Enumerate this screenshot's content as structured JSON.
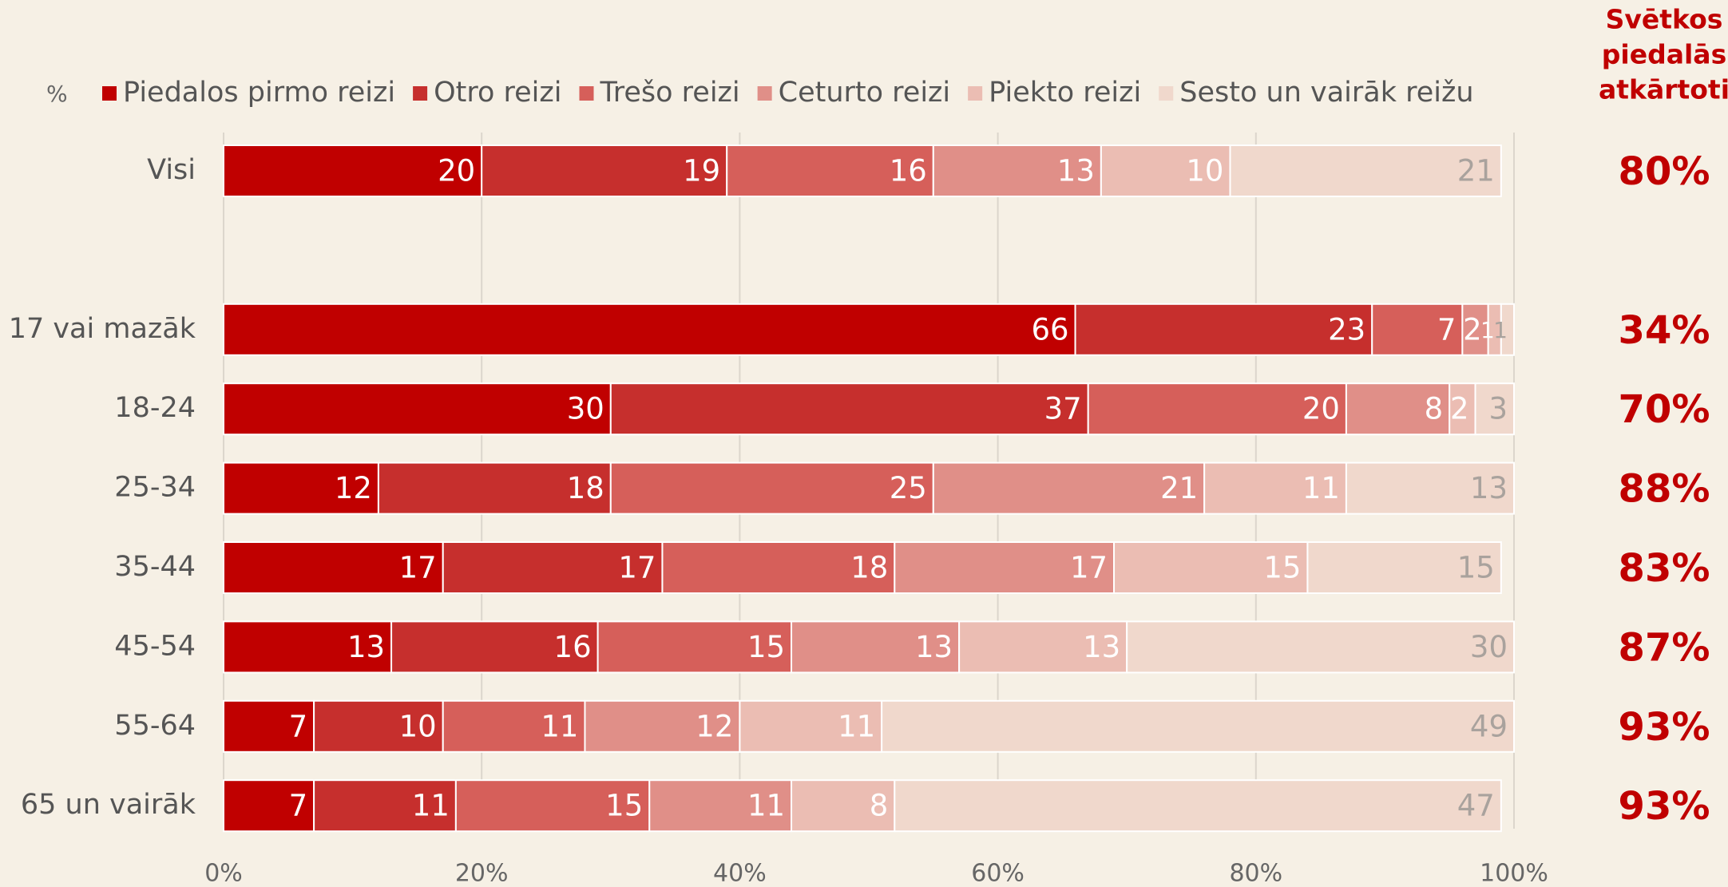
{
  "chart_data": {
    "type": "stacked_barh",
    "unit_label": "%",
    "categories": [
      "Visi",
      null,
      "17 vai mazāk",
      "18-24",
      "25-34",
      "35-44",
      "45-54",
      "55-64",
      "65 un vairāk"
    ],
    "series": [
      {
        "name": "Piedalos pirmo reizi",
        "color": "#c00000",
        "values": [
          20,
          null,
          66,
          30,
          12,
          17,
          13,
          7,
          7
        ]
      },
      {
        "name": "Otro reizi",
        "color": "#c62f2d",
        "values": [
          19,
          null,
          23,
          37,
          18,
          17,
          16,
          10,
          11
        ]
      },
      {
        "name": "Trešo reizi",
        "color": "#d65f5a",
        "values": [
          16,
          null,
          7,
          20,
          25,
          18,
          15,
          11,
          15
        ]
      },
      {
        "name": "Ceturto reizi",
        "color": "#e08f88",
        "values": [
          13,
          null,
          2,
          8,
          21,
          17,
          13,
          12,
          11
        ]
      },
      {
        "name": "Piekto reizi",
        "color": "#ebbdb3",
        "values": [
          10,
          null,
          1,
          2,
          11,
          15,
          13,
          11,
          8
        ]
      },
      {
        "name": "Sesto un vairāk reižu",
        "color": "#f0d8cc",
        "values": [
          21,
          null,
          1,
          3,
          13,
          15,
          30,
          49,
          47
        ]
      }
    ],
    "xlim": [
      0,
      100
    ],
    "xticks": [
      {
        "value": 0,
        "label": "0%"
      },
      {
        "value": 20,
        "label": "20%"
      },
      {
        "value": 40,
        "label": "40%"
      },
      {
        "value": 60,
        "label": "60%"
      },
      {
        "value": 80,
        "label": "80%"
      },
      {
        "value": 100,
        "label": "100%"
      }
    ],
    "grid": true,
    "side_column": {
      "title": [
        "Svētkos",
        "piedalās",
        "atkārtoti"
      ],
      "color": "#c00000",
      "values": [
        80,
        null,
        34,
        70,
        88,
        83,
        87,
        93,
        93
      ],
      "value_labels": [
        "80%",
        null,
        "34%",
        "70%",
        "88%",
        "83%",
        "87%",
        "93%",
        "93%"
      ]
    }
  }
}
